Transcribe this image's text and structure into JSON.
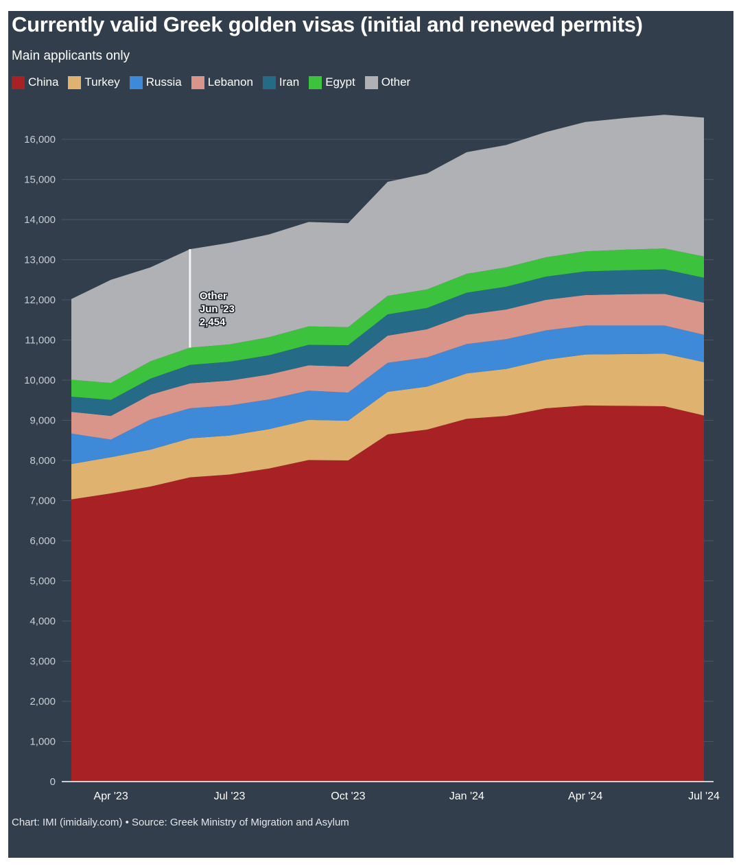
{
  "header": {
    "title": "Currently valid Greek golden visas (initial and renewed permits)",
    "subtitle": "Main applicants only"
  },
  "footer": {
    "source": "Chart: IMI (imidaily.com) • Source: Greek Ministry of Migration and Asylum"
  },
  "colors": {
    "background": "#323e4c",
    "China": "#a82125",
    "Turkey": "#dfb36f",
    "Russia": "#3e8ad8",
    "Lebanon": "#d9958a",
    "Iran": "#256a86",
    "Egypt": "#3cc23c",
    "Other": "#b0b1b4"
  },
  "chart_data": {
    "type": "area",
    "stacked": true,
    "title": "Currently valid Greek golden visas (initial and renewed permits)",
    "subtitle": "Main applicants only",
    "x": [
      "Mar '23",
      "Apr '23",
      "May '23",
      "Jun '23",
      "Jul '23",
      "Aug '23",
      "Sep '23",
      "Oct '23",
      "Nov '23",
      "Dec '23",
      "Jan '24",
      "Feb '24",
      "Mar '24",
      "Apr '24",
      "May '24",
      "Jun '24",
      "Jul '24"
    ],
    "x_tick_labels": [
      "Apr '23",
      "Jul '23",
      "Oct '23",
      "Jan '24",
      "Apr '24",
      "Jul '24"
    ],
    "x_tick_indices": [
      1,
      4,
      7,
      10,
      13,
      16
    ],
    "ylim": [
      0,
      16000
    ],
    "y_ticks": [
      0,
      1000,
      2000,
      3000,
      4000,
      5000,
      6000,
      7000,
      8000,
      9000,
      10000,
      11000,
      12000,
      13000,
      14000,
      15000,
      16000
    ],
    "y_tick_labels": [
      "0",
      "1,000",
      "2,000",
      "3,000",
      "4,000",
      "5,000",
      "6,000",
      "7,000",
      "8,000",
      "9,000",
      "10,000",
      "11,000",
      "12,000",
      "13,000",
      "14,000",
      "15,000",
      "16,000"
    ],
    "grid": true,
    "legend_position": "top-left",
    "series": [
      {
        "name": "China",
        "values": [
          7030,
          7180,
          7350,
          7580,
          7650,
          7800,
          8010,
          8000,
          8650,
          8770,
          9040,
          9110,
          9300,
          9370,
          9360,
          9350,
          9120
        ]
      },
      {
        "name": "Turkey",
        "values": [
          880,
          900,
          920,
          970,
          970,
          980,
          1000,
          990,
          1060,
          1070,
          1130,
          1170,
          1210,
          1270,
          1290,
          1310,
          1330
        ]
      },
      {
        "name": "Russia",
        "values": [
          760,
          440,
          750,
          750,
          750,
          740,
          730,
          700,
          720,
          730,
          730,
          740,
          730,
          720,
          710,
          700,
          680
        ]
      },
      {
        "name": "Lebanon",
        "values": [
          540,
          590,
          620,
          620,
          620,
          620,
          630,
          650,
          680,
          700,
          730,
          740,
          760,
          760,
          780,
          790,
          800
        ]
      },
      {
        "name": "Iran",
        "values": [
          380,
          400,
          400,
          460,
          470,
          480,
          510,
          530,
          530,
          530,
          550,
          570,
          580,
          590,
          600,
          610,
          620
        ]
      },
      {
        "name": "Egypt",
        "values": [
          420,
          420,
          430,
          430,
          430,
          450,
          460,
          450,
          460,
          460,
          470,
          480,
          480,
          500,
          510,
          520,
          530
        ]
      },
      {
        "name": "Other",
        "values": [
          2010,
          2570,
          2340,
          2454,
          2530,
          2560,
          2600,
          2590,
          2840,
          2890,
          3030,
          3050,
          3120,
          3220,
          3280,
          3330,
          3460
        ]
      }
    ],
    "tooltip": {
      "series": "Other",
      "x": "Jun '23",
      "value": "2,454"
    }
  }
}
